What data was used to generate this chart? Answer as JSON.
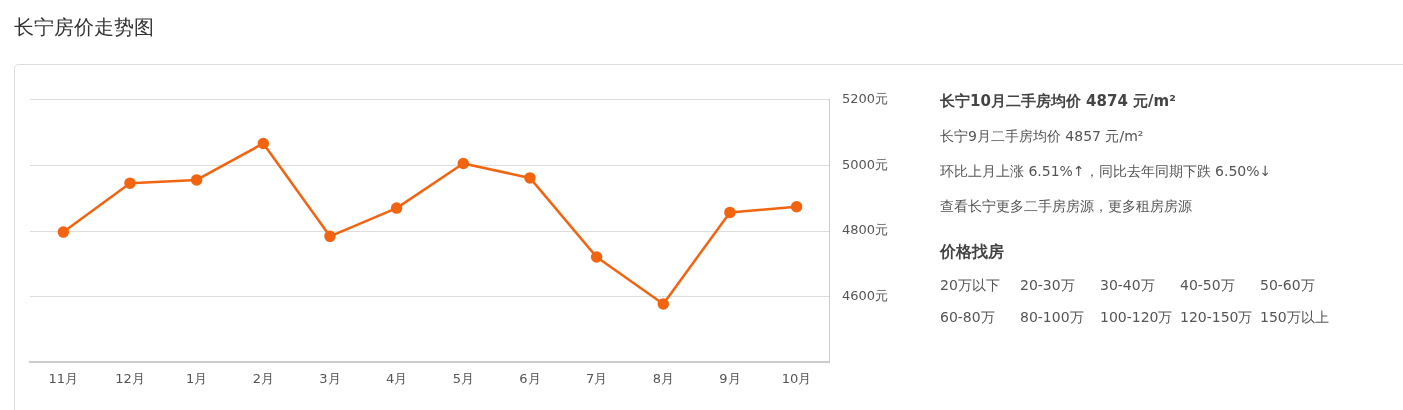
{
  "chart_data": [
    {
      "type": "line",
      "title": "长宁房价走势图",
      "categories": [
        "11月",
        "12月",
        "1月",
        "2月",
        "3月",
        "4月",
        "5月",
        "6月",
        "7月",
        "8月",
        "9月",
        "10月"
      ],
      "series": [
        {
          "color": "#f26410",
          "values": [
            4797,
            4946,
            4956,
            5067,
            4784,
            4870,
            5006,
            4962,
            4721,
            4578,
            4857,
            4874
          ]
        }
      ],
      "ylim": [
        4400,
        5200
      ],
      "yticks": [
        {
          "value": 4600,
          "label": "4600元"
        },
        {
          "value": 4800,
          "label": "4800元"
        },
        {
          "value": 5000,
          "label": "5000元"
        },
        {
          "value": 5200,
          "label": "5200元"
        }
      ],
      "grid": "y",
      "legend": false,
      "marker": "circle",
      "line_style": "solid"
    },
    {
      "type": "other",
      "annotations": [
        "长宁10月二手房均价 4874 元/m²",
        "长宁9月二手房均价 4857 元/m²",
        "环比上月上涨 6.51%↑，同比去年同期下跌 6.50%↓",
        "查看长宁更多二手房房源，更多租房房源",
        "价格找房",
        "20万以下",
        "20-30万",
        "30-40万",
        "40-50万",
        "50-60万",
        "60-80万",
        "80-100万",
        "100-120万",
        "120-150万",
        "150万以上"
      ]
    }
  ]
}
